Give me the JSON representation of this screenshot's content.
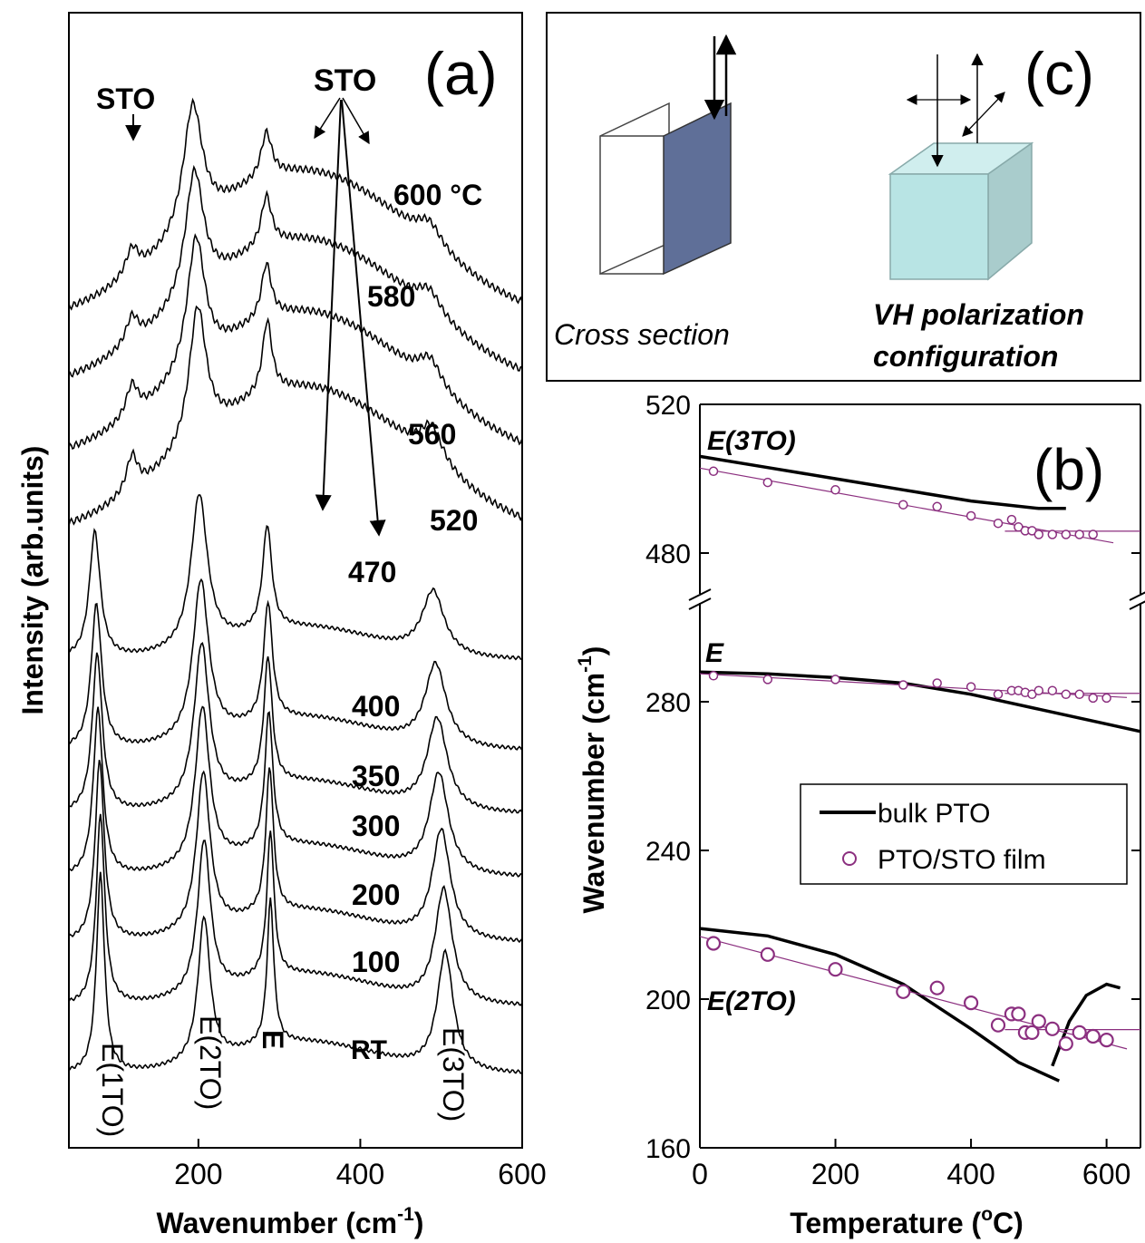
{
  "panel_a": {
    "tag": "(a)",
    "xlabel": "Wavenumber (cm",
    "xlabel_sup": "-1",
    "xlabel_end": ")",
    "ylabel": "Intensity (arb.units)",
    "sto_left": "STO",
    "sto_right": "STO",
    "mode_labels": [
      "E(1TO)",
      "E(2TO)",
      "E",
      "RT",
      "E(3TO)"
    ]
  },
  "panel_b": {
    "tag": "(b)",
    "xlabel": "Temperature (",
    "xlabel_sup": "o",
    "xlabel_end": "C)",
    "ylabel": "Wavenumber (cm",
    "ylabel_sup": "-1",
    "ylabel_end": ")",
    "mode_labels": {
      "e3to": "E(3TO)",
      "e": "E",
      "e2to": "E(2TO)"
    },
    "legend": {
      "bulk": "bulk PTO",
      "film": "PTO/STO film"
    }
  },
  "panel_c": {
    "tag": "(c)",
    "cross_section": "Cross section",
    "vh_line1": "VH polarization",
    "vh_line2": "configuration"
  },
  "colors": {
    "film": "#8b2f7f",
    "bulk": "#000000",
    "sheet": "#5f6f98",
    "cube": "#b8e4e4"
  },
  "chart_data": [
    {
      "type": "line",
      "panel": "a",
      "xlabel": "Wavenumber (cm-1)",
      "ylabel": "Intensity (arb.units)",
      "xlim": [
        40,
        600
      ],
      "x_ticks": [
        200,
        400,
        600
      ],
      "peaks": [
        79,
        207,
        289,
        505
      ],
      "series": [
        {
          "name": "RT",
          "label": "RT",
          "offset": 0,
          "peaks": [
            79,
            207,
            289,
            505
          ]
        },
        {
          "name": "100",
          "label": "100",
          "offset": 1,
          "peaks": [
            79,
            207,
            289,
            503
          ]
        },
        {
          "name": "200",
          "label": "200",
          "offset": 2,
          "peaks": [
            78,
            206,
            288,
            500
          ]
        },
        {
          "name": "300",
          "label": "300",
          "offset": 3,
          "peaks": [
            76,
            205,
            287,
            497
          ]
        },
        {
          "name": "350",
          "label": "350",
          "offset": 4,
          "peaks": [
            75,
            204,
            286,
            495
          ]
        },
        {
          "name": "400",
          "label": "400",
          "offset": 5,
          "peaks": [
            74,
            203,
            286,
            493
          ]
        },
        {
          "name": "470",
          "label": "470",
          "offset": 6,
          "peaks": [
            72,
            201,
            285,
            490
          ]
        },
        {
          "name": "520",
          "label": "520",
          "offset": 7,
          "peaks": [
            118,
            199,
            285,
            488
          ]
        },
        {
          "name": "560",
          "label": "560",
          "offset": 8,
          "peaks": [
            118,
            197,
            284,
            486
          ]
        },
        {
          "name": "580",
          "label": "580",
          "offset": 9,
          "peaks": [
            118,
            195,
            284,
            485
          ]
        },
        {
          "name": "600",
          "label": "600 °C",
          "offset": 10,
          "peaks": [
            118,
            193,
            284,
            485
          ]
        }
      ]
    },
    {
      "type": "scatter",
      "panel": "b",
      "xlabel": "Temperature (oC)",
      "ylabel": "Wavenumber (cm-1)",
      "xlim": [
        0,
        650
      ],
      "ylim": [
        160,
        520
      ],
      "x_ticks": [
        0,
        200,
        400,
        600
      ],
      "y_ticks": [
        160,
        200,
        240,
        280,
        480,
        520
      ],
      "axis_break": "between 280 and 480",
      "series": [
        {
          "name": "PTO/STO film",
          "mode": "E(3TO)",
          "points": [
            [
              20,
              502
            ],
            [
              100,
              499
            ],
            [
              200,
              497
            ],
            [
              300,
              493
            ],
            [
              350,
              492.5
            ],
            [
              400,
              490
            ],
            [
              440,
              488
            ],
            [
              460,
              489
            ],
            [
              470,
              487
            ],
            [
              480,
              486
            ],
            [
              490,
              486
            ],
            [
              500,
              485
            ],
            [
              520,
              485
            ],
            [
              540,
              485
            ],
            [
              560,
              485
            ],
            [
              580,
              485
            ]
          ]
        },
        {
          "name": "PTO/STO film",
          "mode": "E",
          "points": [
            [
              20,
              287
            ],
            [
              100,
              286
            ],
            [
              200,
              286
            ],
            [
              300,
              284.5
            ],
            [
              350,
              285
            ],
            [
              400,
              284
            ],
            [
              440,
              282
            ],
            [
              460,
              283
            ],
            [
              470,
              283
            ],
            [
              480,
              282.5
            ],
            [
              490,
              282
            ],
            [
              500,
              283
            ],
            [
              520,
              283
            ],
            [
              540,
              282
            ],
            [
              560,
              282
            ],
            [
              580,
              281
            ],
            [
              600,
              281
            ]
          ]
        },
        {
          "name": "PTO/STO film",
          "mode": "E(2TO)",
          "points": [
            [
              20,
              215
            ],
            [
              100,
              212
            ],
            [
              200,
              208
            ],
            [
              300,
              202
            ],
            [
              350,
              203
            ],
            [
              400,
              199
            ],
            [
              440,
              193
            ],
            [
              460,
              196
            ],
            [
              470,
              196
            ],
            [
              480,
              191
            ],
            [
              490,
              191
            ],
            [
              500,
              194
            ],
            [
              520,
              192
            ],
            [
              540,
              188
            ],
            [
              560,
              191
            ],
            [
              580,
              190
            ],
            [
              600,
              189
            ]
          ]
        },
        {
          "name": "bulk PTO",
          "mode": "E(3TO)",
          "line": [
            [
              0,
              506
            ],
            [
              100,
              503
            ],
            [
              200,
              500
            ],
            [
              300,
              497
            ],
            [
              400,
              494
            ],
            [
              500,
              492
            ],
            [
              540,
              492
            ]
          ]
        },
        {
          "name": "bulk PTO",
          "mode": "E",
          "line": [
            [
              0,
              288
            ],
            [
              100,
              287.5
            ],
            [
              200,
              286.5
            ],
            [
              300,
              285
            ],
            [
              400,
              282
            ],
            [
              500,
              278
            ],
            [
              600,
              274
            ],
            [
              650,
              272
            ]
          ]
        },
        {
          "name": "bulk PTO",
          "mode": "E(2TO)",
          "line": [
            [
              0,
              219
            ],
            [
              100,
              217
            ],
            [
              200,
              212
            ],
            [
              300,
              204
            ],
            [
              400,
              192
            ],
            [
              470,
              183
            ],
            [
              530,
              178
            ]
          ]
        },
        {
          "name": "bulk PTO",
          "mode": "E(2TO) high-T branch",
          "line": [
            [
              520,
              182
            ],
            [
              545,
              194
            ],
            [
              570,
              201
            ],
            [
              600,
              204
            ],
            [
              620,
              203
            ]
          ]
        }
      ]
    }
  ]
}
